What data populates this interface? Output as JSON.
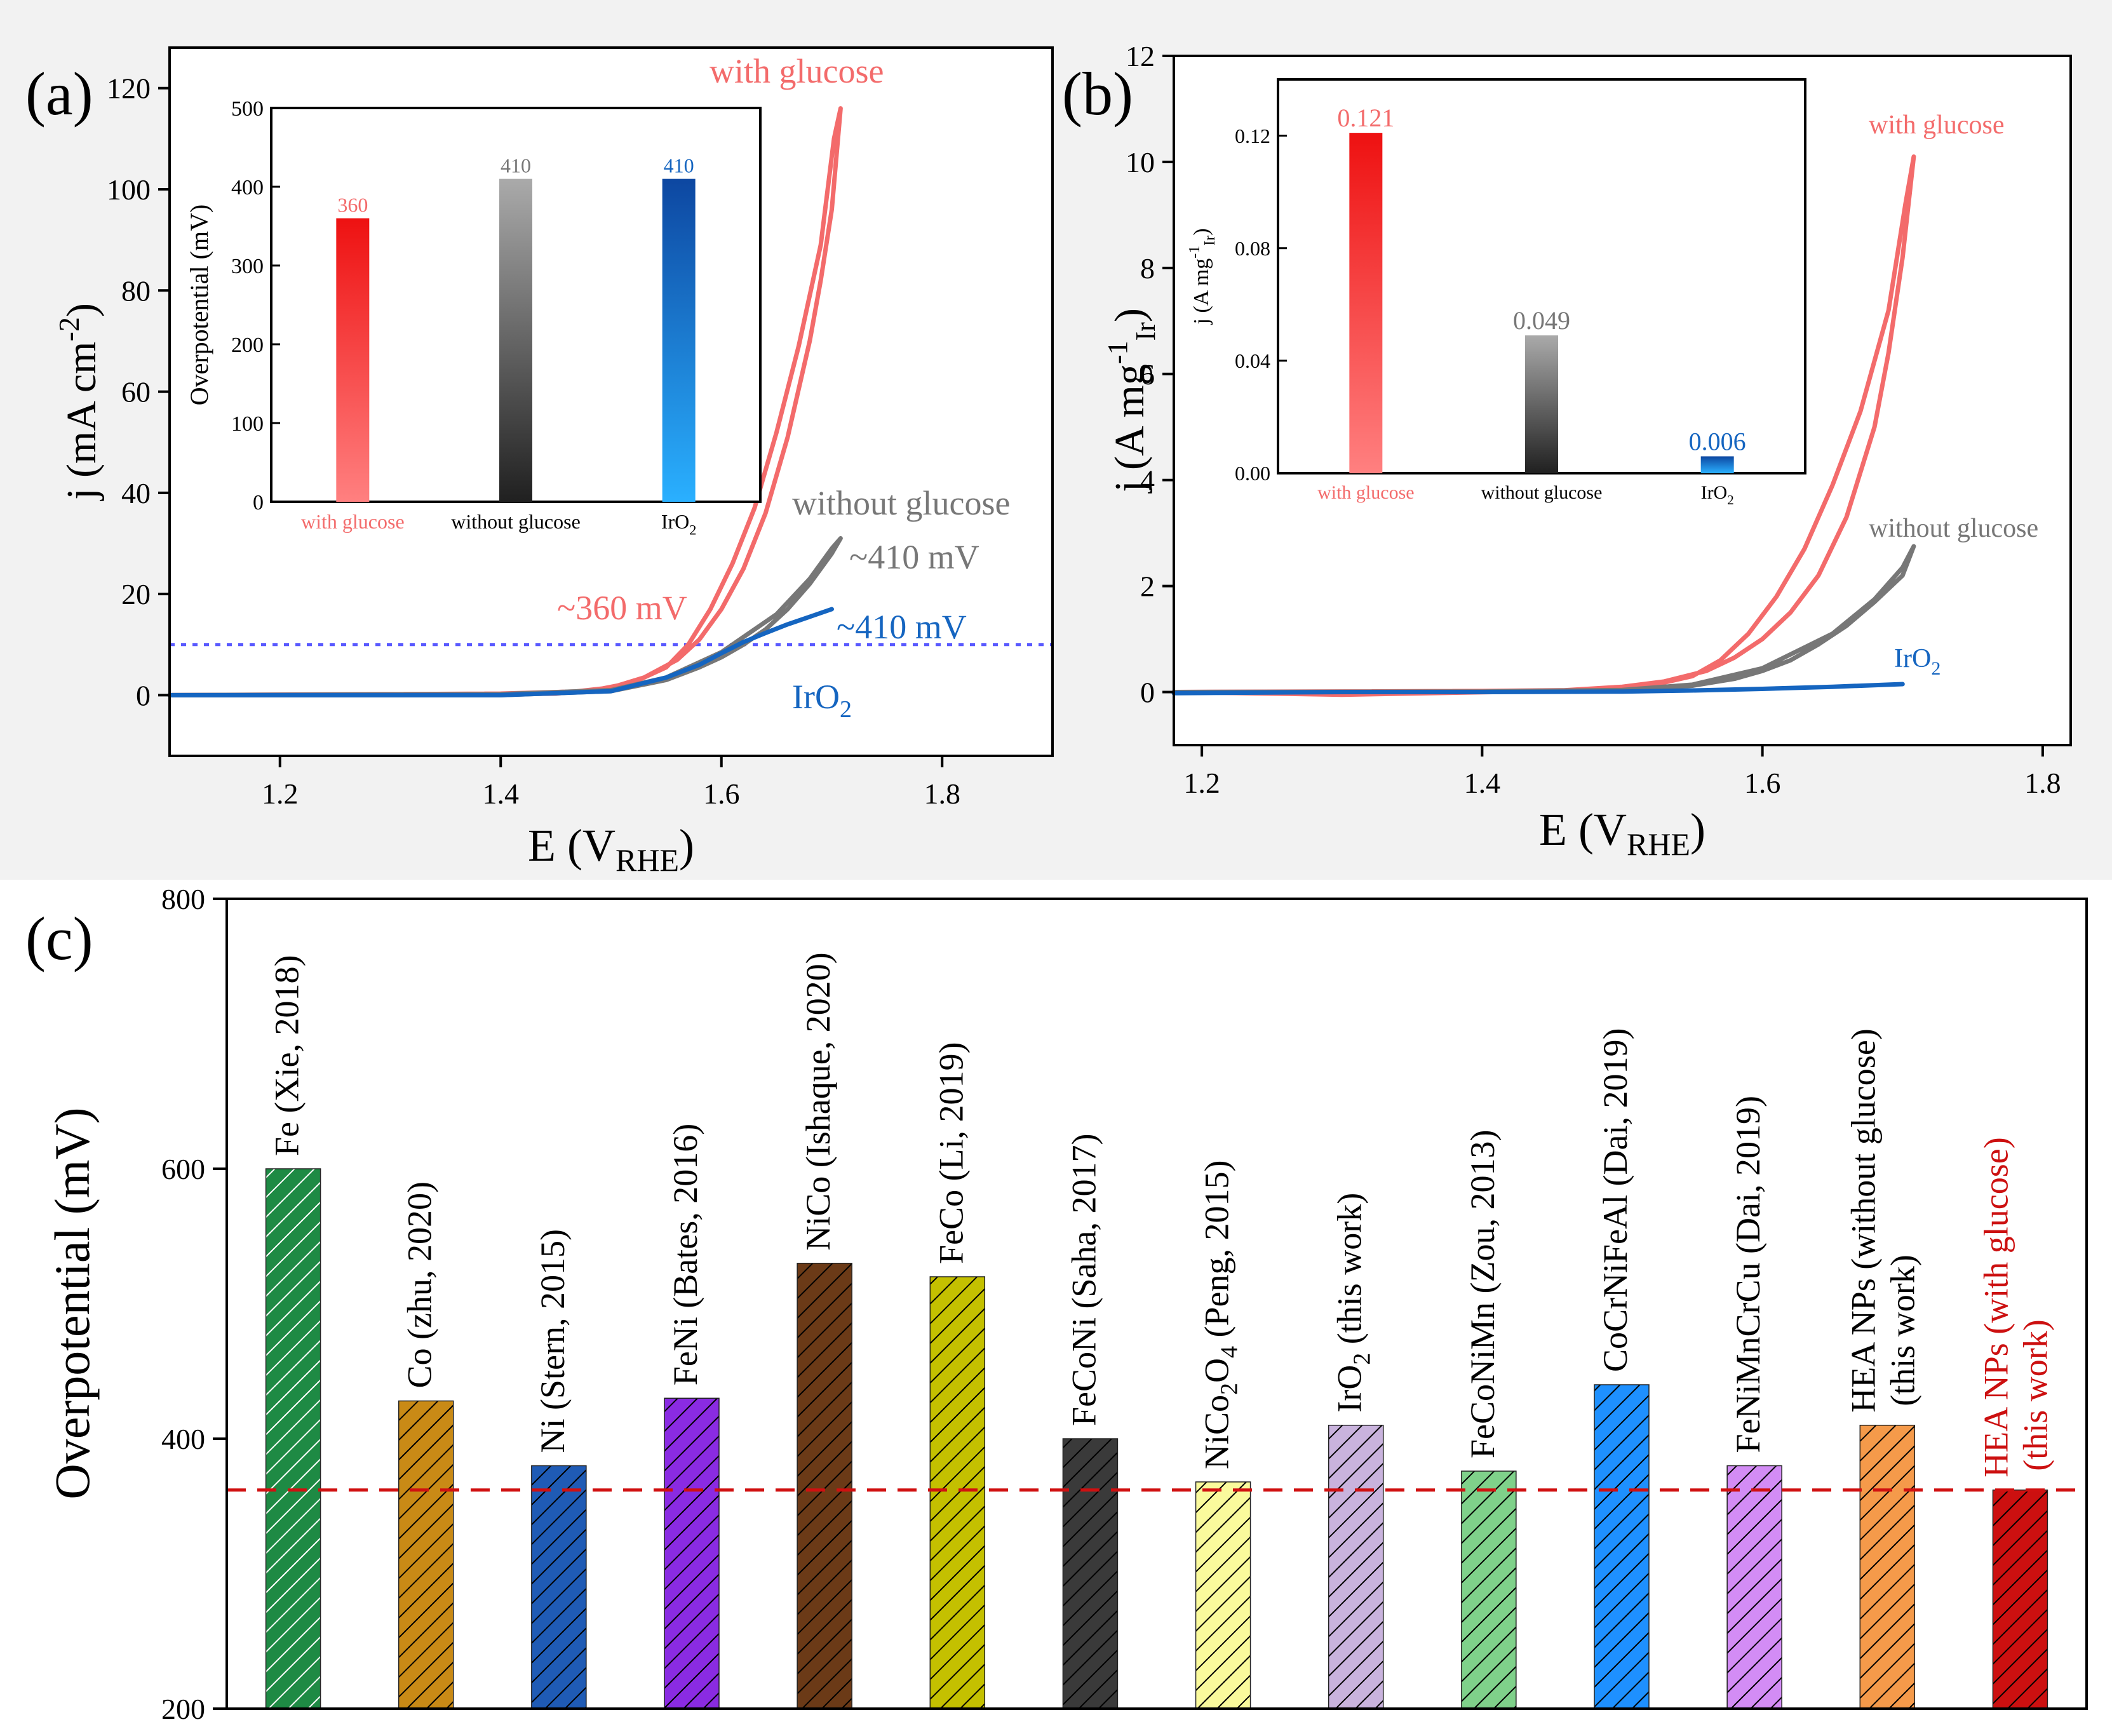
{
  "colors": {
    "red": "#f36b6b",
    "red_bar": "#ef1f1f",
    "gray": "#777777",
    "blue": "#1565c0",
    "dot_blue": "#5a5aff",
    "dashed_red": "#d01010",
    "axis": "#000000",
    "panel_bg": "#f2f2f2"
  },
  "chart_data": [
    {
      "id": "a",
      "panel_label": "(a)",
      "type": "line",
      "xlabel": "E (V",
      "xlabel_sub": "RHE",
      "xlabel_close": ")",
      "ylabel": "j (mA cm",
      "ylabel_sup": "-2",
      "ylabel_close": ")",
      "xlim": [
        1.1,
        1.9
      ],
      "ylim": [
        -12,
        128
      ],
      "xticks": [
        1.2,
        1.4,
        1.6,
        1.8
      ],
      "yticks": [
        0,
        20,
        40,
        60,
        80,
        100,
        120
      ],
      "xtick_labels": [
        "1.2",
        "1.4",
        "1.6",
        "1.8"
      ],
      "ytick_labels": [
        "0",
        "20",
        "40",
        "60",
        "80",
        "100",
        "120"
      ],
      "reference_line": {
        "y": 10,
        "style": "dotted"
      },
      "series": [
        {
          "name": "with glucose",
          "color": "#f36b6b",
          "x": [
            1.1,
            1.3,
            1.45,
            1.5,
            1.53,
            1.56,
            1.58,
            1.6,
            1.62,
            1.64,
            1.66,
            1.68,
            1.69,
            1.7,
            1.708,
            1.702,
            1.69,
            1.67,
            1.65,
            1.63,
            1.61,
            1.59,
            1.57,
            1.55,
            1.52,
            1.48,
            1.4,
            1.1
          ],
          "y": [
            0,
            0,
            0.3,
            1.5,
            3.5,
            7,
            11,
            17,
            25,
            36,
            51,
            70,
            82,
            96,
            116,
            110,
            89,
            69,
            52,
            37,
            26,
            17,
            10,
            5.5,
            2.5,
            0.8,
            0.3,
            0
          ]
        },
        {
          "name": "without glucose",
          "color": "#777777",
          "x": [
            1.1,
            1.4,
            1.5,
            1.55,
            1.58,
            1.6,
            1.62,
            1.64,
            1.66,
            1.68,
            1.7,
            1.708,
            1.7,
            1.68,
            1.65,
            1.6,
            1.55,
            1.5,
            1.4,
            1.1
          ],
          "y": [
            0,
            0,
            0.8,
            3,
            5.5,
            7.5,
            10,
            13,
            17,
            22,
            28,
            31,
            29,
            23,
            16,
            8.5,
            3.5,
            1,
            0.2,
            0
          ]
        },
        {
          "name": "IrO2",
          "color": "#1565c0",
          "x": [
            1.1,
            1.4,
            1.5,
            1.55,
            1.58,
            1.6,
            1.62,
            1.64,
            1.66,
            1.68,
            1.7
          ],
          "y": [
            0,
            0,
            0.8,
            3.5,
            6,
            8.3,
            10.5,
            12.3,
            14,
            15.5,
            17
          ]
        }
      ],
      "annotations": [
        {
          "text": "with glucose",
          "color": "#f36b6b"
        },
        {
          "text": "without glucose",
          "color": "#777777"
        },
        {
          "text": "~410 mV",
          "color": "#777777"
        },
        {
          "text": "~360 mV",
          "color": "#f36b6b"
        },
        {
          "text": "~410 mV",
          "color": "#1565c0"
        },
        {
          "text": "IrO",
          "sub": "2",
          "color": "#1565c0"
        }
      ],
      "inset": {
        "type": "bar",
        "ylabel": "Overpotential (mV)",
        "ylim": [
          0,
          500
        ],
        "yticks": [
          0,
          100,
          200,
          300,
          400,
          500
        ],
        "ytick_labels": [
          "0",
          "100",
          "200",
          "300",
          "400",
          "500"
        ],
        "categories": [
          "with glucose",
          "without glucose",
          "IrO2"
        ],
        "category_labels": [
          "with glucose",
          "without glucose",
          "IrO"
        ],
        "category_subs": [
          "",
          "",
          "2"
        ],
        "values": [
          360,
          410,
          410
        ],
        "value_labels": [
          "360",
          "410",
          "410"
        ],
        "colors": [
          "#f36b6b",
          "#777777",
          "#1565c0"
        ]
      }
    },
    {
      "id": "b",
      "panel_label": "(b)",
      "type": "line",
      "xlabel": "E (V",
      "xlabel_sub": "RHE",
      "xlabel_close": ")",
      "ylabel": "j (A mg",
      "ylabel_sup": "-1",
      "ylabel_sub": "Ir",
      "ylabel_close": ")",
      "xlim": [
        1.18,
        1.82
      ],
      "ylim": [
        -1,
        12
      ],
      "xticks": [
        1.2,
        1.4,
        1.6,
        1.8
      ],
      "yticks": [
        0,
        2,
        4,
        6,
        8,
        10,
        12
      ],
      "xtick_labels": [
        "1.2",
        "1.4",
        "1.6",
        "1.8"
      ],
      "ytick_labels": [
        "0",
        "2",
        "4",
        "6",
        "8",
        "10",
        "12"
      ],
      "series": [
        {
          "name": "with glucose",
          "color": "#f36b6b",
          "x": [
            1.18,
            1.3,
            1.45,
            1.5,
            1.53,
            1.56,
            1.58,
            1.6,
            1.62,
            1.64,
            1.66,
            1.68,
            1.69,
            1.7,
            1.708,
            1.702,
            1.69,
            1.67,
            1.65,
            1.63,
            1.61,
            1.59,
            1.57,
            1.55,
            1.52,
            1.48,
            1.4,
            1.18
          ],
          "y": [
            0,
            -0.05,
            0.02,
            0.1,
            0.2,
            0.4,
            0.65,
            1.0,
            1.5,
            2.2,
            3.3,
            5.0,
            6.4,
            8.2,
            10.1,
            9.2,
            7.2,
            5.3,
            3.9,
            2.7,
            1.8,
            1.1,
            0.6,
            0.3,
            0.12,
            0.04,
            0.02,
            0
          ]
        },
        {
          "name": "without glucose",
          "color": "#777777",
          "x": [
            1.18,
            1.4,
            1.5,
            1.55,
            1.58,
            1.6,
            1.62,
            1.64,
            1.66,
            1.68,
            1.7,
            1.708,
            1.7,
            1.68,
            1.65,
            1.6,
            1.55,
            1.5,
            1.4,
            1.18
          ],
          "y": [
            0,
            0,
            0.03,
            0.12,
            0.25,
            0.4,
            0.6,
            0.9,
            1.25,
            1.7,
            2.2,
            2.75,
            2.35,
            1.75,
            1.1,
            0.45,
            0.14,
            0.04,
            0.01,
            0
          ]
        },
        {
          "name": "IrO2",
          "color": "#1565c0",
          "x": [
            1.18,
            1.3,
            1.4,
            1.5,
            1.55,
            1.6,
            1.65,
            1.7
          ],
          "y": [
            -0.02,
            0,
            0,
            0.01,
            0.03,
            0.06,
            0.1,
            0.15
          ]
        }
      ],
      "annotations": [
        {
          "text": "with glucose",
          "color": "#f36b6b"
        },
        {
          "text": "without glucose",
          "color": "#777777"
        },
        {
          "text": "IrO",
          "sub": "2",
          "color": "#1565c0"
        }
      ],
      "inset": {
        "type": "bar",
        "ylabel": "j (A mg",
        "ylabel_sup": "-1",
        "ylabel_sub": "Ir",
        "ylabel_close": ")",
        "ylim": [
          0,
          0.14
        ],
        "yticks": [
          0,
          0.04,
          0.08,
          0.12
        ],
        "ytick_labels": [
          "0.00",
          "0.04",
          "0.08",
          "0.12"
        ],
        "categories": [
          "with glucose",
          "without glucose",
          "IrO2"
        ],
        "category_labels": [
          "with glucose",
          "without glucose",
          "IrO"
        ],
        "category_subs": [
          "",
          "",
          "2"
        ],
        "values": [
          0.121,
          0.049,
          0.006
        ],
        "value_labels": [
          "0.121",
          "0.049",
          "0.006"
        ],
        "colors": [
          "#f36b6b",
          "#777777",
          "#1565c0"
        ]
      }
    },
    {
      "id": "c",
      "panel_label": "(c)",
      "type": "bar",
      "ylabel": "Overpotential (mV)",
      "ylim": [
        200,
        800
      ],
      "yticks": [
        200,
        400,
        600,
        800
      ],
      "ytick_labels": [
        "200",
        "400",
        "600",
        "800"
      ],
      "reference_line": {
        "y": 362,
        "style": "dashed"
      },
      "categories": [
        "Fe (Xie, 2018)",
        "Co (zhu, 2020)",
        "Ni (Stern, 2015)",
        "FeNi (Bates, 2016)",
        "NiCo (Ishaque, 2020)",
        "FeCo (Li, 2019)",
        "FeCoNi (Saha, 2017)",
        "NiCo2O4 (Peng, 2015)",
        "IrO2 (this work)",
        "FeCoNiMn (Zou, 2013)",
        "CoCrNiFeAl (Dai, 2019)",
        "FeNiMnCrCu (Dai, 2019)",
        "HEA NPs (without glucose) (this work)",
        "HEA NPs (with glucose) (this work)"
      ],
      "values": [
        600,
        428,
        380,
        430,
        530,
        520,
        400,
        368,
        410,
        376,
        440,
        380,
        410,
        362
      ],
      "bar_colors": [
        "#1e8a44",
        "#c98a16",
        "#1f5bb5",
        "#8a2be2",
        "#6b3a17",
        "#c4c000",
        "#3a3a3a",
        "#fafa9c",
        "#c9b3dd",
        "#7fd18a",
        "#1e90ff",
        "#d38cf5",
        "#f59a4a",
        "#cc1010"
      ],
      "hatch_colors": [
        "#ffffff",
        "#000000",
        "#000000",
        "#000000",
        "#000000",
        "#000000",
        "#000000",
        "#000000",
        "#000000",
        "#000000",
        "#000000",
        "#000000",
        "#000000",
        "#000000"
      ],
      "label_lines": [
        [
          {
            "t": "Fe (Xie, 2018)"
          }
        ],
        [
          {
            "t": "Co (zhu, 2020)"
          }
        ],
        [
          {
            "t": "Ni (Stern, 2015)"
          }
        ],
        [
          {
            "t": "FeNi (Bates, 2016)"
          }
        ],
        [
          {
            "t": "NiCo (Ishaque, 2020)"
          }
        ],
        [
          {
            "t": "FeCo (Li, 2019)"
          }
        ],
        [
          {
            "t": "FeCoNi (Saha, 2017)"
          }
        ],
        [
          {
            "t": "NiCo"
          },
          {
            "t": "2",
            "sub": true
          },
          {
            "t": "O"
          },
          {
            "t": "4",
            "sub": true
          },
          {
            "t": " (Peng, 2015)"
          }
        ],
        [
          {
            "t": "IrO"
          },
          {
            "t": "2",
            "sub": true
          },
          {
            "t": " (this work)"
          }
        ],
        [
          {
            "t": "FeCoNiMn (Zou, 2013)"
          }
        ],
        [
          {
            "t": "CoCrNiFeAl (Dai, 2019)"
          }
        ],
        [
          {
            "t": "FeNiMnCrCu (Dai, 2019)"
          }
        ],
        [
          {
            "t": "HEA NPs (without glucose)"
          }
        ],
        [
          {
            "t": "HEA NPs (with glucose)"
          }
        ]
      ],
      "label_second_lines": [
        "",
        "",
        "",
        "",
        "",
        "",
        "",
        "",
        "",
        "",
        "",
        "",
        "(this work)",
        "(this work)"
      ],
      "label_colors": [
        "#000000",
        "#000000",
        "#000000",
        "#000000",
        "#000000",
        "#000000",
        "#000000",
        "#000000",
        "#000000",
        "#000000",
        "#000000",
        "#000000",
        "#000000",
        "#cc1010"
      ]
    }
  ]
}
